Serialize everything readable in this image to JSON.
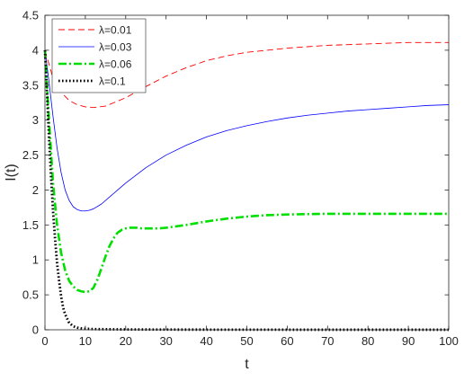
{
  "chart_data": {
    "type": "line",
    "xlabel": "t",
    "ylabel": "I(t)",
    "xlim": [
      0,
      100
    ],
    "ylim": [
      0,
      4.5
    ],
    "xticks": [
      0,
      10,
      20,
      30,
      40,
      50,
      60,
      70,
      80,
      90,
      100
    ],
    "yticks": [
      0,
      0.5,
      1,
      1.5,
      2,
      2.5,
      3,
      3.5,
      4,
      4.5
    ],
    "grid": false,
    "legend_position": "top-left",
    "series": [
      {
        "name": "λ=0.01",
        "color": "#ff0000",
        "style": "dashed",
        "x": [
          0,
          2,
          4,
          6,
          8,
          10,
          12,
          15,
          20,
          25,
          30,
          35,
          40,
          45,
          50,
          55,
          60,
          65,
          70,
          75,
          80,
          85,
          90,
          95,
          100
        ],
        "y": [
          4.0,
          3.6,
          3.4,
          3.28,
          3.22,
          3.19,
          3.18,
          3.2,
          3.32,
          3.48,
          3.63,
          3.75,
          3.85,
          3.92,
          3.97,
          4.0,
          4.03,
          4.05,
          4.07,
          4.08,
          4.09,
          4.1,
          4.11,
          4.11,
          4.11
        ]
      },
      {
        "name": "λ=0.03",
        "color": "#0000ff",
        "style": "solid",
        "x": [
          0,
          1,
          2,
          3,
          4,
          5,
          6,
          7,
          8,
          9,
          10,
          11,
          12,
          14,
          16,
          18,
          20,
          25,
          30,
          35,
          40,
          45,
          50,
          55,
          60,
          65,
          70,
          75,
          80,
          85,
          90,
          95,
          100
        ],
        "y": [
          4.0,
          3.55,
          3.05,
          2.6,
          2.25,
          2.0,
          1.85,
          1.76,
          1.72,
          1.7,
          1.7,
          1.71,
          1.73,
          1.8,
          1.9,
          2.0,
          2.1,
          2.32,
          2.5,
          2.64,
          2.76,
          2.85,
          2.92,
          2.98,
          3.03,
          3.07,
          3.1,
          3.13,
          3.15,
          3.17,
          3.19,
          3.21,
          3.22
        ]
      },
      {
        "name": "λ=0.06",
        "color": "#00e000",
        "style": "dashdot",
        "x": [
          0,
          1,
          2,
          3,
          4,
          5,
          6,
          7,
          8,
          9,
          10,
          11,
          12,
          13,
          14,
          15,
          16,
          17,
          18,
          19,
          20,
          21,
          22,
          23,
          24,
          26,
          28,
          30,
          35,
          40,
          45,
          50,
          55,
          60,
          70,
          80,
          90,
          100
        ],
        "y": [
          4.0,
          3.0,
          2.1,
          1.5,
          1.1,
          0.85,
          0.7,
          0.62,
          0.57,
          0.55,
          0.54,
          0.55,
          0.6,
          0.72,
          0.88,
          1.05,
          1.2,
          1.31,
          1.39,
          1.43,
          1.45,
          1.46,
          1.46,
          1.46,
          1.45,
          1.45,
          1.45,
          1.46,
          1.5,
          1.55,
          1.59,
          1.62,
          1.64,
          1.65,
          1.66,
          1.66,
          1.66,
          1.66
        ]
      },
      {
        "name": "λ=0.1",
        "color": "#000000",
        "style": "dotted",
        "x": [
          0,
          0.5,
          1,
          1.5,
          2,
          2.5,
          3,
          3.5,
          4,
          4.5,
          5,
          6,
          7,
          8,
          9,
          10,
          12,
          15,
          20,
          30,
          40,
          50,
          60,
          70,
          80,
          90,
          100
        ],
        "y": [
          4.0,
          3.4,
          2.75,
          2.2,
          1.7,
          1.3,
          0.95,
          0.7,
          0.48,
          0.32,
          0.22,
          0.1,
          0.05,
          0.03,
          0.02,
          0.015,
          0.01,
          0.008,
          0.005,
          0.003,
          0.002,
          0.002,
          0.001,
          0.001,
          0.001,
          0.001,
          0.001
        ]
      }
    ]
  }
}
